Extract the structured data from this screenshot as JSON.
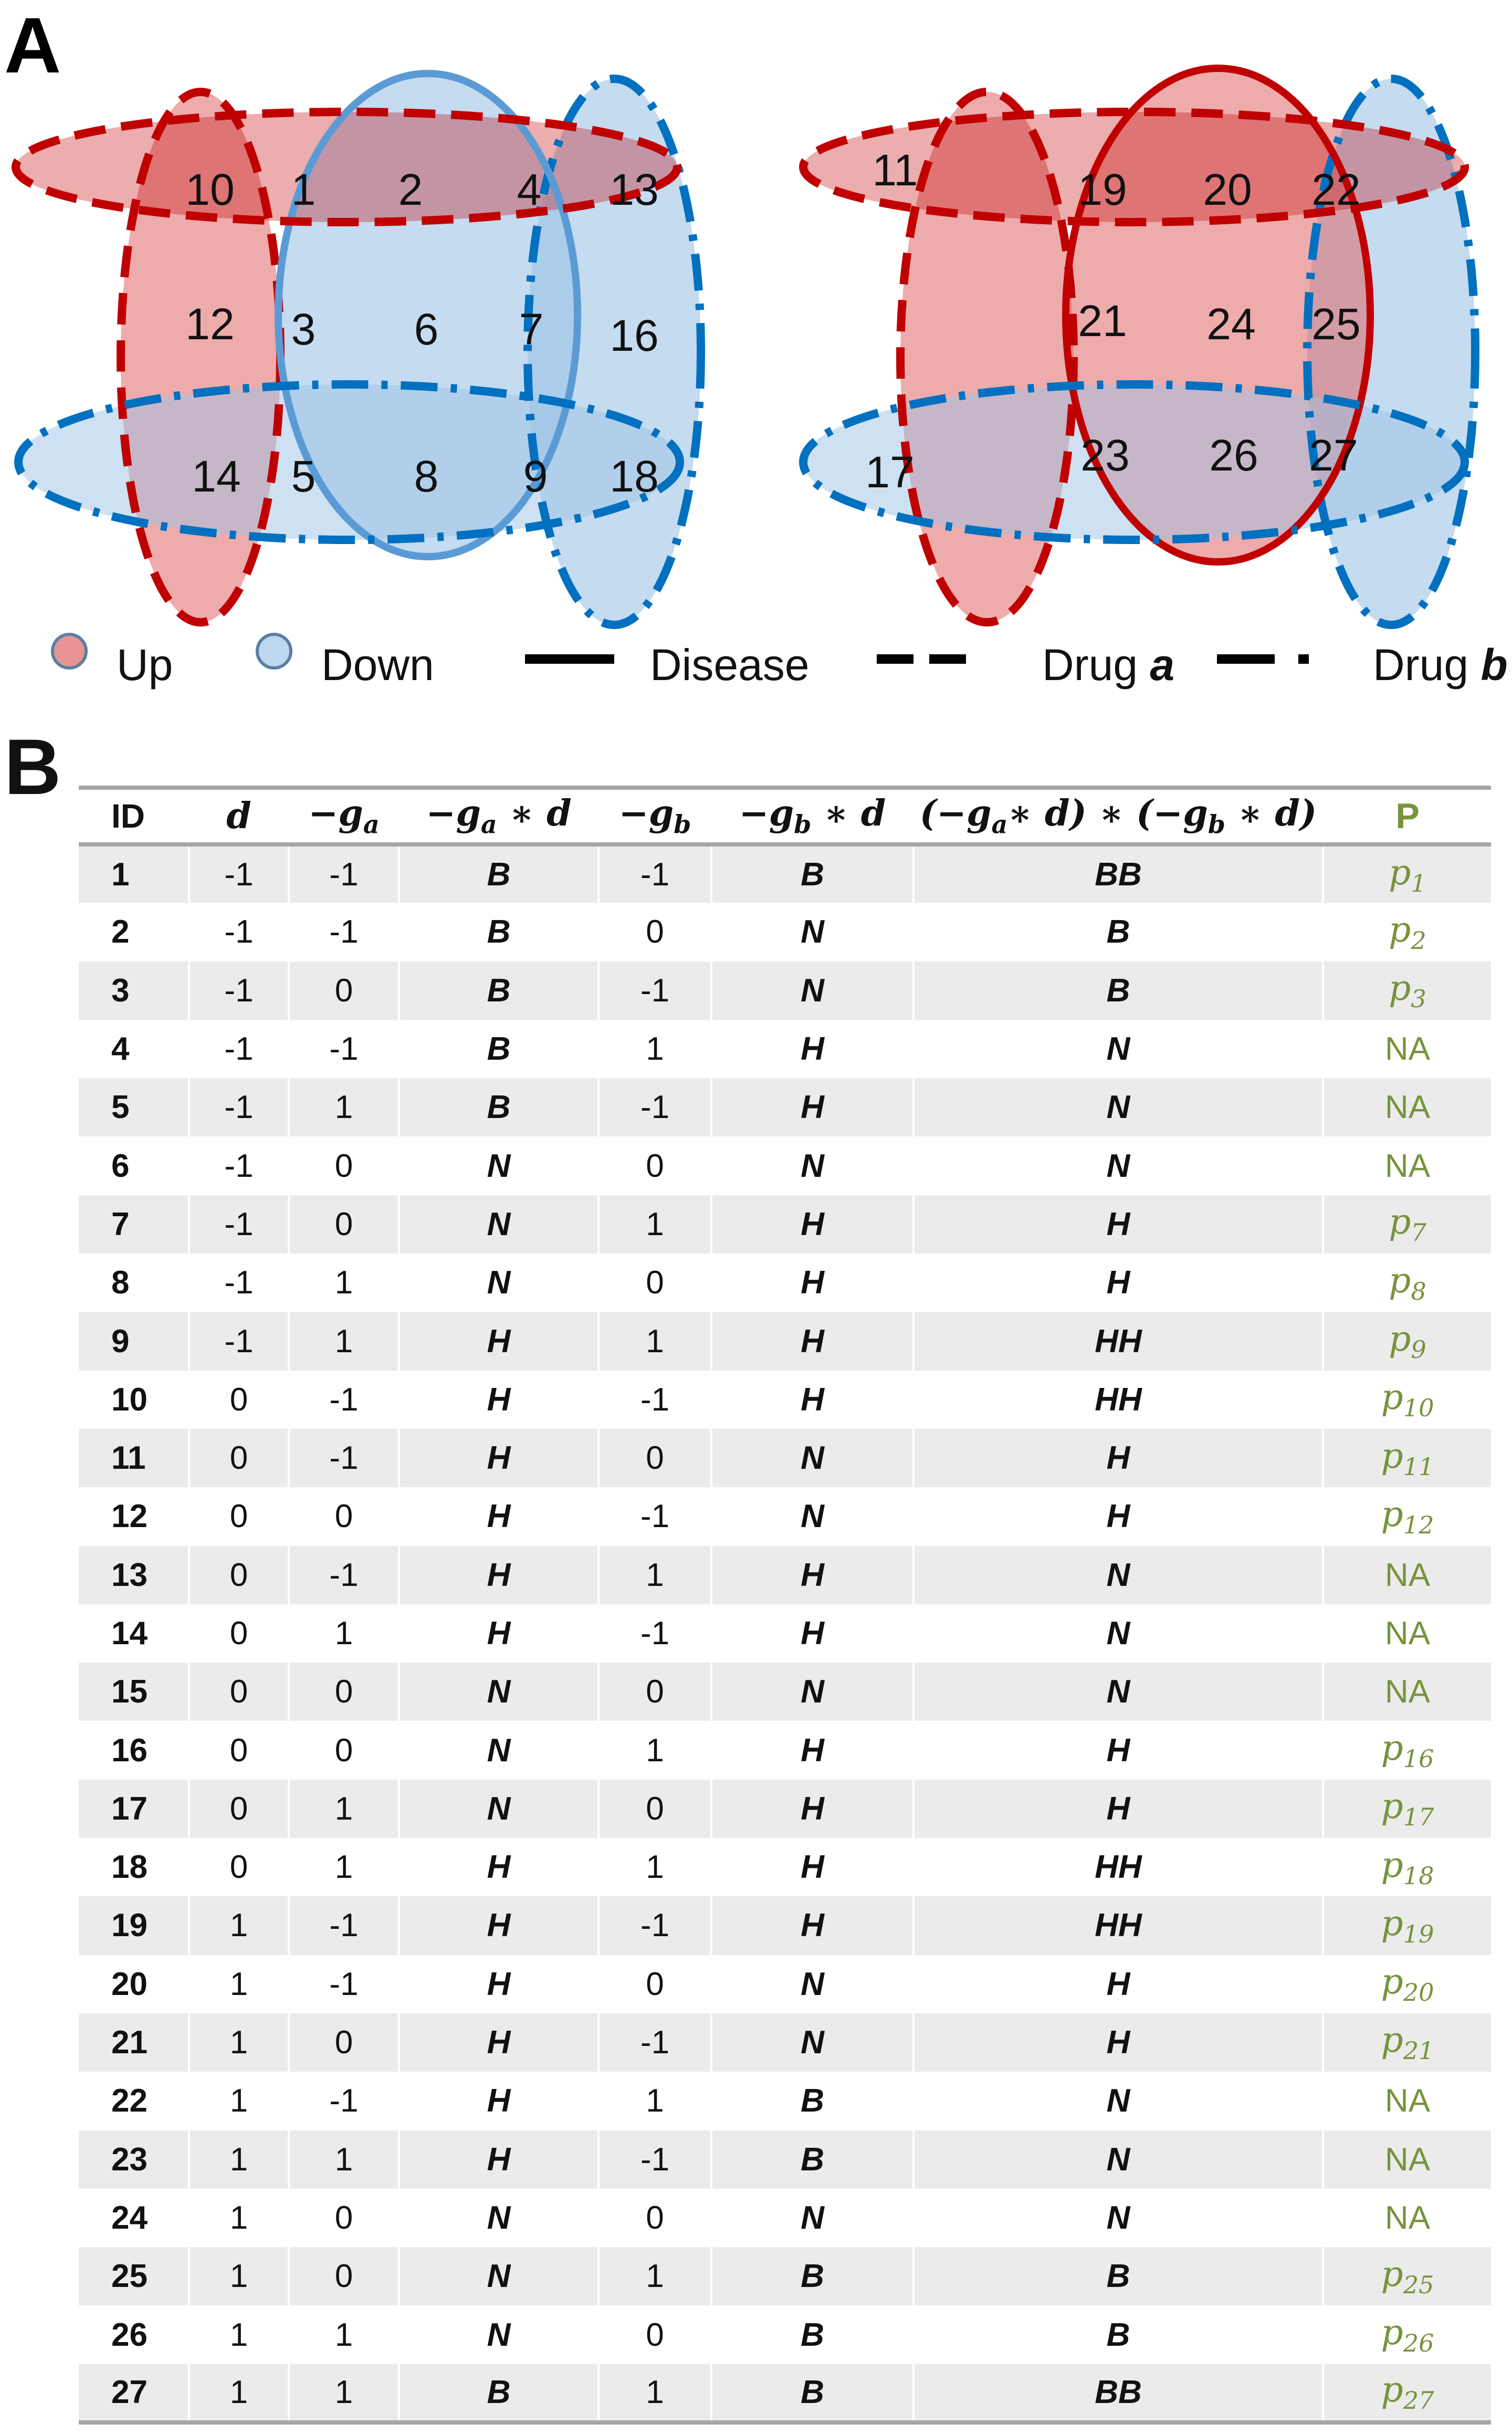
{
  "panel_a_label": "A",
  "panel_b_label": "B",
  "colors": {
    "up": "#e06666",
    "down": "#9dc3e6",
    "disease_red": "#c00000",
    "disease_blue": "#5b9bd5",
    "drug_red": "#c00000",
    "drug_blue": "#0070c0",
    "p_green": "#77933c"
  },
  "venn_left_regions": [
    "10",
    "1",
    "2",
    "4",
    "13",
    "12",
    "3",
    "6",
    "7",
    "16",
    "14",
    "5",
    "8",
    "9",
    "18"
  ],
  "venn_right_regions": [
    "11",
    "19",
    "20",
    "22",
    "21",
    "24",
    "25",
    "17",
    "23",
    "26",
    "27"
  ],
  "legend": {
    "up": "Up",
    "down": "Down",
    "disease": "Disease",
    "drug_a": "Drug ",
    "drug_a_var": "a",
    "drug_b": "Drug ",
    "drug_b_var": "b"
  },
  "table": {
    "headers": {
      "id": "ID",
      "d": "d",
      "ga": "−g",
      "ga_sub": "a",
      "gad_pre": "−g",
      "gad_sub": "a",
      "gad_post": " ∗ d",
      "gb": "−g",
      "gb_sub": "b",
      "gbd_pre": "−g",
      "gbd_sub": "b",
      "gbd_post": " ∗ d",
      "prod_1": "(−g",
      "prod_1_sub": "a",
      "prod_2": "∗ d) ∗ (−g",
      "prod_2_sub": "b",
      "prod_3": " ∗ d)",
      "p": "P"
    },
    "rows": [
      {
        "id": "1",
        "d": "-1",
        "ga": "-1",
        "gad": "B",
        "gb": "-1",
        "gbd": "B",
        "prod": "BB",
        "p": "p",
        "p_sub": "1"
      },
      {
        "id": "2",
        "d": "-1",
        "ga": "-1",
        "gad": "B",
        "gb": "0",
        "gbd": "N",
        "prod": "B",
        "p": "p",
        "p_sub": "2"
      },
      {
        "id": "3",
        "d": "-1",
        "ga": "0",
        "gad": "B",
        "gb": "-1",
        "gbd": "N",
        "prod": "B",
        "p": "p",
        "p_sub": "3"
      },
      {
        "id": "4",
        "d": "-1",
        "ga": "-1",
        "gad": "B",
        "gb": "1",
        "gbd": "H",
        "prod": "N",
        "p": "NA",
        "p_sub": ""
      },
      {
        "id": "5",
        "d": "-1",
        "ga": "1",
        "gad": "B",
        "gb": "-1",
        "gbd": "H",
        "prod": "N",
        "p": "NA",
        "p_sub": ""
      },
      {
        "id": "6",
        "d": "-1",
        "ga": "0",
        "gad": "N",
        "gb": "0",
        "gbd": "N",
        "prod": "N",
        "p": "NA",
        "p_sub": ""
      },
      {
        "id": "7",
        "d": "-1",
        "ga": "0",
        "gad": "N",
        "gb": "1",
        "gbd": "H",
        "prod": "H",
        "p": "p",
        "p_sub": "7"
      },
      {
        "id": "8",
        "d": "-1",
        "ga": "1",
        "gad": "N",
        "gb": "0",
        "gbd": "H",
        "prod": "H",
        "p": "p",
        "p_sub": "8"
      },
      {
        "id": "9",
        "d": "-1",
        "ga": "1",
        "gad": "H",
        "gb": "1",
        "gbd": "H",
        "prod": "HH",
        "p": "p",
        "p_sub": "9"
      },
      {
        "id": "10",
        "d": "0",
        "ga": "-1",
        "gad": "H",
        "gb": "-1",
        "gbd": "H",
        "prod": "HH",
        "p": "p",
        "p_sub": "10"
      },
      {
        "id": "11",
        "d": "0",
        "ga": "-1",
        "gad": "H",
        "gb": "0",
        "gbd": "N",
        "prod": "H",
        "p": "p",
        "p_sub": "11"
      },
      {
        "id": "12",
        "d": "0",
        "ga": "0",
        "gad": "H",
        "gb": "-1",
        "gbd": "N",
        "prod": "H",
        "p": "p",
        "p_sub": "12"
      },
      {
        "id": "13",
        "d": "0",
        "ga": "-1",
        "gad": "H",
        "gb": "1",
        "gbd": "H",
        "prod": "N",
        "p": "NA",
        "p_sub": ""
      },
      {
        "id": "14",
        "d": "0",
        "ga": "1",
        "gad": "H",
        "gb": "-1",
        "gbd": "H",
        "prod": "N",
        "p": "NA",
        "p_sub": ""
      },
      {
        "id": "15",
        "d": "0",
        "ga": "0",
        "gad": "N",
        "gb": "0",
        "gbd": "N",
        "prod": "N",
        "p": "NA",
        "p_sub": ""
      },
      {
        "id": "16",
        "d": "0",
        "ga": "0",
        "gad": "N",
        "gb": "1",
        "gbd": "H",
        "prod": "H",
        "p": "p",
        "p_sub": "16"
      },
      {
        "id": "17",
        "d": "0",
        "ga": "1",
        "gad": "N",
        "gb": "0",
        "gbd": "H",
        "prod": "H",
        "p": "p",
        "p_sub": "17"
      },
      {
        "id": "18",
        "d": "0",
        "ga": "1",
        "gad": "H",
        "gb": "1",
        "gbd": "H",
        "prod": "HH",
        "p": "p",
        "p_sub": "18"
      },
      {
        "id": "19",
        "d": "1",
        "ga": "-1",
        "gad": "H",
        "gb": "-1",
        "gbd": "H",
        "prod": "HH",
        "p": "p",
        "p_sub": "19"
      },
      {
        "id": "20",
        "d": "1",
        "ga": "-1",
        "gad": "H",
        "gb": "0",
        "gbd": "N",
        "prod": "H",
        "p": "p",
        "p_sub": "20"
      },
      {
        "id": "21",
        "d": "1",
        "ga": "0",
        "gad": "H",
        "gb": "-1",
        "gbd": "N",
        "prod": "H",
        "p": "p",
        "p_sub": "21"
      },
      {
        "id": "22",
        "d": "1",
        "ga": "-1",
        "gad": "H",
        "gb": "1",
        "gbd": "B",
        "prod": "N",
        "p": "NA",
        "p_sub": ""
      },
      {
        "id": "23",
        "d": "1",
        "ga": "1",
        "gad": "H",
        "gb": "-1",
        "gbd": "B",
        "prod": "N",
        "p": "NA",
        "p_sub": ""
      },
      {
        "id": "24",
        "d": "1",
        "ga": "0",
        "gad": "N",
        "gb": "0",
        "gbd": "N",
        "prod": "N",
        "p": "NA",
        "p_sub": ""
      },
      {
        "id": "25",
        "d": "1",
        "ga": "0",
        "gad": "N",
        "gb": "1",
        "gbd": "B",
        "prod": "B",
        "p": "p",
        "p_sub": "25"
      },
      {
        "id": "26",
        "d": "1",
        "ga": "1",
        "gad": "N",
        "gb": "0",
        "gbd": "B",
        "prod": "B",
        "p": "p",
        "p_sub": "26"
      },
      {
        "id": "27",
        "d": "1",
        "ga": "1",
        "gad": "B",
        "gb": "1",
        "gbd": "B",
        "prod": "BB",
        "p": "p",
        "p_sub": "27"
      }
    ]
  }
}
